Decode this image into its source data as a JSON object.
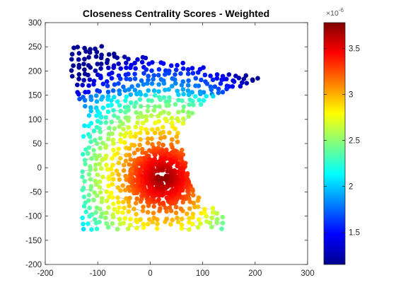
{
  "chart_data": {
    "type": "scatter",
    "title": "Closeness Centrality Scores - Weighted",
    "xlabel": "",
    "ylabel": "",
    "xlim": [
      -200,
      300
    ],
    "ylim": [
      -200,
      300
    ],
    "xticks": [
      "-200",
      "-100",
      "0",
      "100",
      "200",
      "300"
    ],
    "yticks": [
      "-200",
      "-150",
      "-100",
      "-50",
      "0",
      "50",
      "100",
      "150",
      "200",
      "250",
      "300"
    ],
    "grid": false,
    "colormap": "jet",
    "colorbar": {
      "range": [
        1.15e-06,
        3.78e-06
      ],
      "ticks": [
        "1.5",
        "2",
        "2.5",
        "3",
        "3.5"
      ],
      "tick_values": [
        1.5,
        2.0,
        2.5,
        3.0,
        3.5
      ],
      "exponent_label": "×10",
      "exponent_power": "-6"
    },
    "high_centrality_center": [
      25,
      -20
    ],
    "points_description": "Graph network of nodes shaped like Minnesota; color shows closeness centrality, highest near (25,-20)"
  }
}
